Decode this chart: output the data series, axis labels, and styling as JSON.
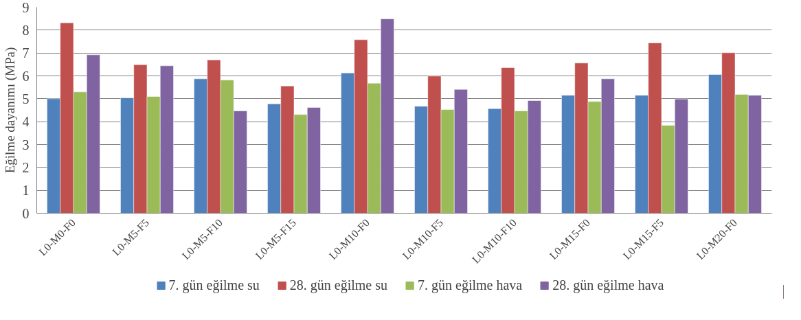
{
  "chart_data": {
    "type": "bar",
    "ylabel": "Eğilme dayanımı (MPa)",
    "categories": [
      "L0-M0-F0",
      "L0-M5-F5",
      "L0-M5-F10",
      "L0-M5-F15",
      "L0-M10-F0",
      "L0-M10-F5",
      "L0-M10-F10",
      "L0-M15-F0",
      "L0-M15-F5",
      "L0-M20-F0"
    ],
    "series": [
      {
        "name": "7. gün eğilme su",
        "color": "#4f81bd",
        "values": [
          5.0,
          5.04,
          5.87,
          4.78,
          6.13,
          4.67,
          4.57,
          5.15,
          5.15,
          6.06
        ]
      },
      {
        "name": "28. gün eğilme su",
        "color": "#c0504d",
        "values": [
          8.32,
          6.49,
          6.7,
          5.56,
          7.58,
          5.99,
          6.36,
          6.56,
          7.44,
          7.01
        ]
      },
      {
        "name": "7. gün eğilme hava",
        "color": "#9bbb59",
        "values": [
          5.3,
          5.1,
          5.82,
          4.31,
          5.68,
          4.53,
          4.47,
          4.88,
          3.84,
          5.19
        ]
      },
      {
        "name": "28. gün eğilme hava",
        "color": "#8064a2",
        "values": [
          6.92,
          6.44,
          4.47,
          4.62,
          8.49,
          5.41,
          4.92,
          5.87,
          4.99,
          5.15
        ]
      }
    ],
    "ylim": [
      0,
      9
    ],
    "yticks": [
      0,
      1,
      2,
      3,
      4,
      5,
      6,
      7,
      8,
      9
    ],
    "grid": "y",
    "legend": "bottom"
  }
}
